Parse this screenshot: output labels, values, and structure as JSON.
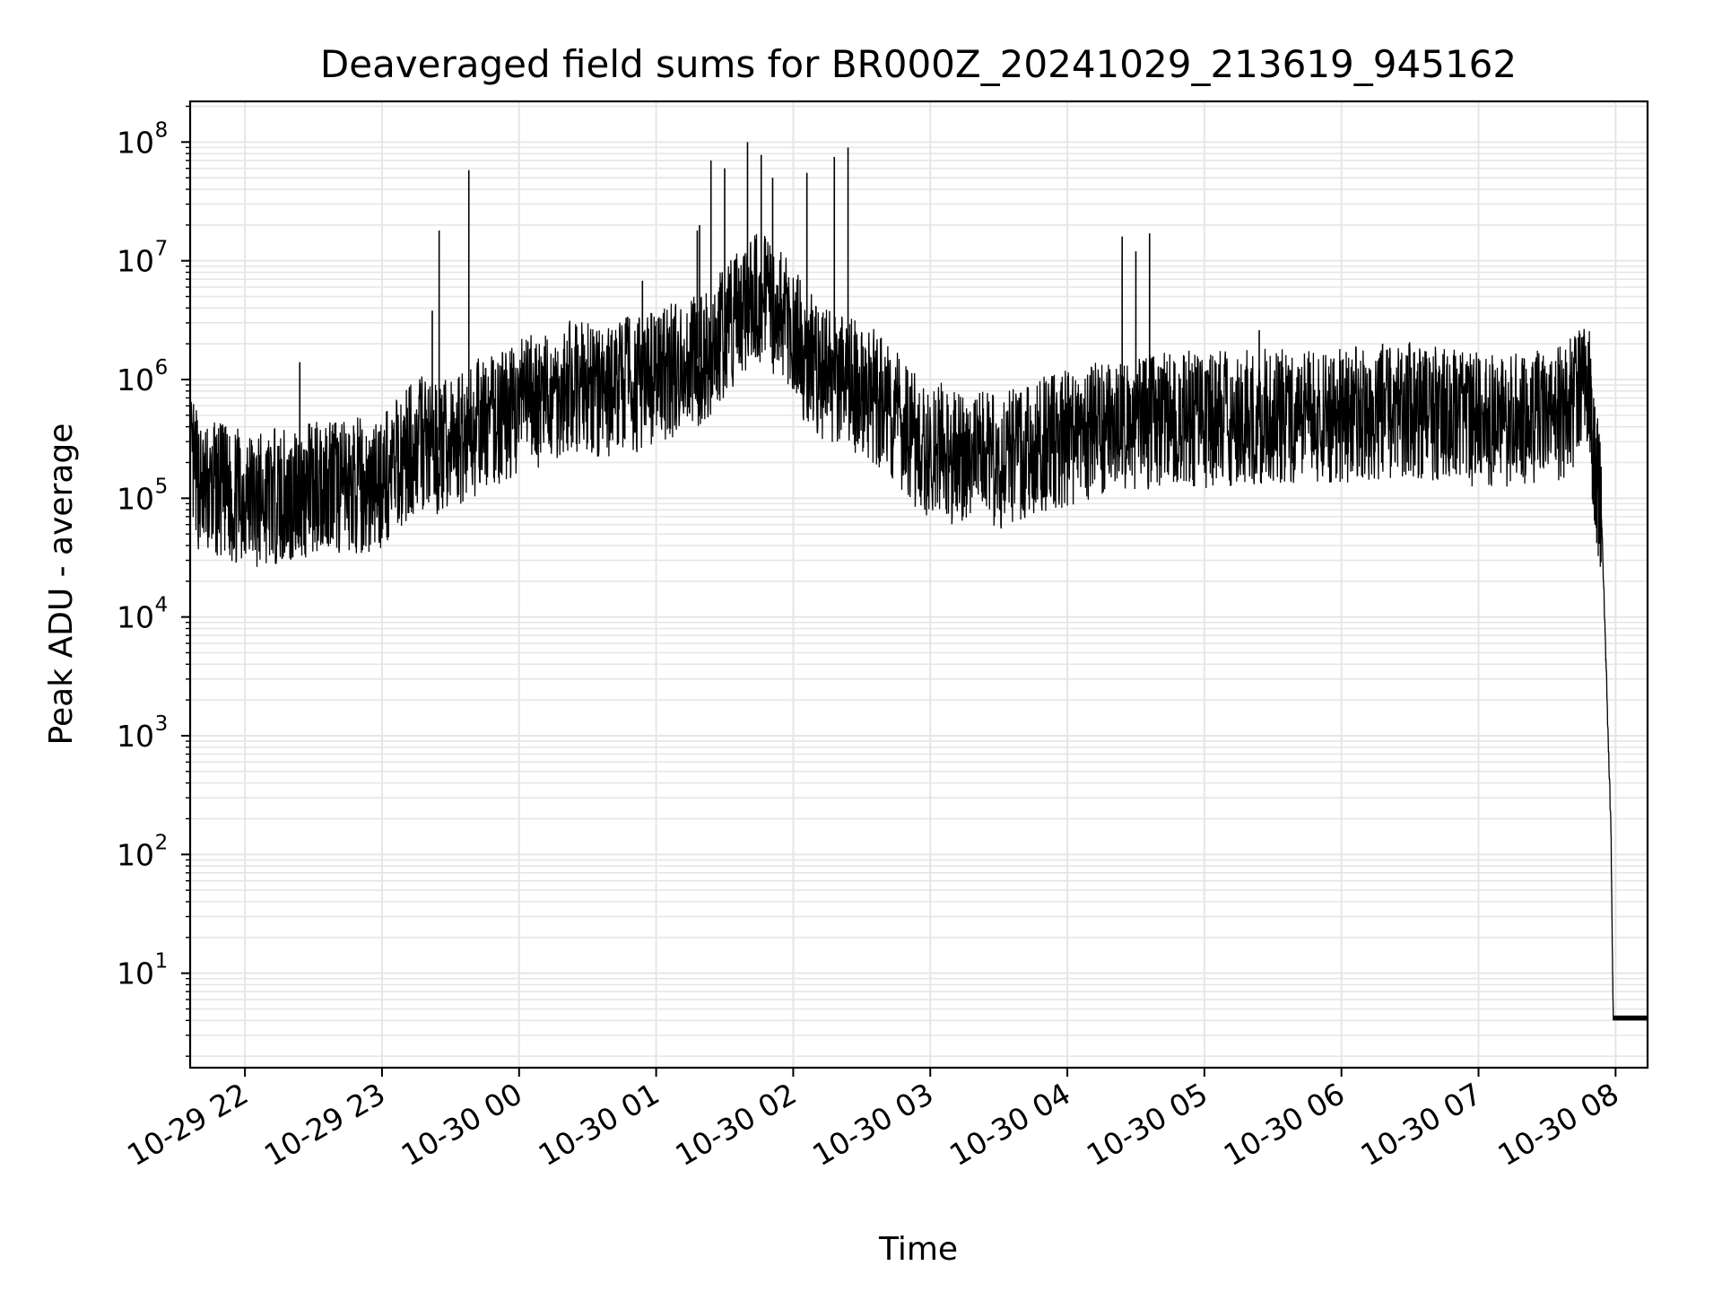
{
  "chart_data": {
    "type": "line",
    "title": "Deaveraged field sums for BR000Z_20241029_213619_945162",
    "xlabel": "Time",
    "ylabel": "Peak ADU - average",
    "yscale": "log",
    "ylim": [
      1.6,
      220000000.0
    ],
    "xlim": [
      "2024-10-29 21:36",
      "2024-10-30 08:14"
    ],
    "grid": true,
    "line_color": "#000000",
    "x_tick_labels": [
      "10-29 22",
      "10-29 23",
      "10-30 00",
      "10-30 01",
      "10-30 02",
      "10-30 03",
      "10-30 04",
      "10-30 05",
      "10-30 06",
      "10-30 07",
      "10-30 08"
    ],
    "y_tick_labels": [
      {
        "base": "10",
        "exp": "1"
      },
      {
        "base": "10",
        "exp": "2"
      },
      {
        "base": "10",
        "exp": "3"
      },
      {
        "base": "10",
        "exp": "4"
      },
      {
        "base": "10",
        "exp": "5"
      },
      {
        "base": "10",
        "exp": "6"
      },
      {
        "base": "10",
        "exp": "7"
      },
      {
        "base": "10",
        "exp": "8"
      }
    ],
    "series": [
      {
        "x": [
          "2024-10-29 21:36",
          "2024-10-29 21:42",
          "2024-10-29 21:48",
          "2024-10-29 21:54",
          "2024-10-29 22:00",
          "2024-10-29 22:06",
          "2024-10-29 22:12",
          "2024-10-29 22:18",
          "2024-10-29 22:24",
          "2024-10-29 22:30",
          "2024-10-29 22:36",
          "2024-10-29 22:42",
          "2024-10-29 22:48",
          "2024-10-29 22:54",
          "2024-10-29 23:00",
          "2024-10-29 23:06",
          "2024-10-29 23:12",
          "2024-10-29 23:18",
          "2024-10-29 23:24",
          "2024-10-29 23:30",
          "2024-10-29 23:36",
          "2024-10-29 23:42",
          "2024-10-29 23:48",
          "2024-10-29 23:54",
          "2024-10-30 00:00",
          "2024-10-30 00:06",
          "2024-10-30 00:12",
          "2024-10-30 00:18",
          "2024-10-30 00:24",
          "2024-10-30 00:30",
          "2024-10-30 00:36",
          "2024-10-30 00:42",
          "2024-10-30 00:48",
          "2024-10-30 00:54",
          "2024-10-30 01:00",
          "2024-10-30 01:06",
          "2024-10-30 01:12",
          "2024-10-30 01:18",
          "2024-10-30 01:24",
          "2024-10-30 01:30",
          "2024-10-30 01:36",
          "2024-10-30 01:42",
          "2024-10-30 01:48",
          "2024-10-30 01:54",
          "2024-10-30 02:00",
          "2024-10-30 02:06",
          "2024-10-30 02:12",
          "2024-10-30 02:18",
          "2024-10-30 02:24",
          "2024-10-30 02:30",
          "2024-10-30 02:36",
          "2024-10-30 02:42",
          "2024-10-30 02:48",
          "2024-10-30 02:54",
          "2024-10-30 03:00",
          "2024-10-30 03:06",
          "2024-10-30 03:12",
          "2024-10-30 03:18",
          "2024-10-30 03:24",
          "2024-10-30 03:30",
          "2024-10-30 03:36",
          "2024-10-30 03:42",
          "2024-10-30 03:48",
          "2024-10-30 03:54",
          "2024-10-30 04:00",
          "2024-10-30 04:06",
          "2024-10-30 04:12",
          "2024-10-30 04:18",
          "2024-10-30 04:24",
          "2024-10-30 04:30",
          "2024-10-30 04:36",
          "2024-10-30 04:42",
          "2024-10-30 04:48",
          "2024-10-30 04:54",
          "2024-10-30 05:00",
          "2024-10-30 05:06",
          "2024-10-30 05:12",
          "2024-10-30 05:18",
          "2024-10-30 05:24",
          "2024-10-30 05:30",
          "2024-10-30 05:36",
          "2024-10-30 05:42",
          "2024-10-30 05:48",
          "2024-10-30 05:54",
          "2024-10-30 06:00",
          "2024-10-30 06:06",
          "2024-10-30 06:12",
          "2024-10-30 06:18",
          "2024-10-30 06:24",
          "2024-10-30 06:30",
          "2024-10-30 06:36",
          "2024-10-30 06:42",
          "2024-10-30 06:48",
          "2024-10-30 06:54",
          "2024-10-30 07:00",
          "2024-10-30 07:06",
          "2024-10-30 07:12",
          "2024-10-30 07:18",
          "2024-10-30 07:24",
          "2024-10-30 07:30",
          "2024-10-30 07:36",
          "2024-10-30 07:42",
          "2024-10-30 07:48",
          "2024-10-30 07:51",
          "2024-10-30 07:54",
          "2024-10-30 07:56",
          "2024-10-30 07:58",
          "2024-10-30 07:59",
          "2024-10-30 08:14"
        ],
        "y": [
          200000,
          110000,
          120000,
          100000,
          110000,
          95000,
          105000,
          100000,
          110000,
          120000,
          150000,
          120000,
          130000,
          120000,
          140000,
          180000,
          250000,
          300000,
          250000,
          280000,
          350000,
          400000,
          450000,
          500000,
          600000,
          700000,
          650000,
          800000,
          900000,
          850000,
          700000,
          900000,
          1000000,
          850000,
          1100000,
          1200000,
          1300000,
          1500000,
          1800000,
          2500000,
          3500000,
          4500000,
          5000000,
          3500000,
          2500000,
          1500000,
          1200000,
          1000000,
          900000,
          800000,
          700000,
          600000,
          400000,
          300000,
          250000,
          250000,
          200000,
          220000,
          250000,
          200000,
          230000,
          250000,
          280000,
          300000,
          320000,
          350000,
          380000,
          400000,
          420000,
          430000,
          440000,
          450000,
          450000,
          470000,
          450000,
          480000,
          460000,
          500000,
          480000,
          490000,
          480000,
          500000,
          480000,
          500000,
          500000,
          520000,
          510000,
          540000,
          560000,
          550000,
          520000,
          500000,
          480000,
          460000,
          450000,
          460000,
          460000,
          450000,
          470000,
          500000,
          520000,
          700000,
          900000,
          200000,
          60000,
          3000,
          150,
          4,
          4
        ]
      }
    ],
    "spikes": [
      {
        "x": "2024-10-29 22:24",
        "y": 1400000
      },
      {
        "x": "2024-10-29 23:22",
        "y": 3800000
      },
      {
        "x": "2024-10-29 23:25",
        "y": 18000000
      },
      {
        "x": "2024-10-29 23:38",
        "y": 58000000
      },
      {
        "x": "2024-10-30 00:48",
        "y": 2800000
      },
      {
        "x": "2024-10-30 00:54",
        "y": 6800000
      },
      {
        "x": "2024-10-30 01:18",
        "y": 18000000
      },
      {
        "x": "2024-10-30 01:19",
        "y": 20000000
      },
      {
        "x": "2024-10-30 01:24",
        "y": 70000000
      },
      {
        "x": "2024-10-30 01:30",
        "y": 60000000
      },
      {
        "x": "2024-10-30 01:40",
        "y": 100000000
      },
      {
        "x": "2024-10-30 01:46",
        "y": 78000000
      },
      {
        "x": "2024-10-30 01:51",
        "y": 50000000
      },
      {
        "x": "2024-10-30 02:06",
        "y": 55000000
      },
      {
        "x": "2024-10-30 02:18",
        "y": 75000000
      },
      {
        "x": "2024-10-30 02:24",
        "y": 90000000
      },
      {
        "x": "2024-10-30 02:30",
        "y": 2500000
      },
      {
        "x": "2024-10-30 04:24",
        "y": 16000000
      },
      {
        "x": "2024-10-30 04:30",
        "y": 12000000
      },
      {
        "x": "2024-10-30 04:36",
        "y": 17000000
      },
      {
        "x": "2024-10-30 05:24",
        "y": 2600000
      },
      {
        "x": "2024-10-30 06:18",
        "y": 2000000
      },
      {
        "x": "2024-10-30 07:00",
        "y": 1500000
      }
    ]
  }
}
